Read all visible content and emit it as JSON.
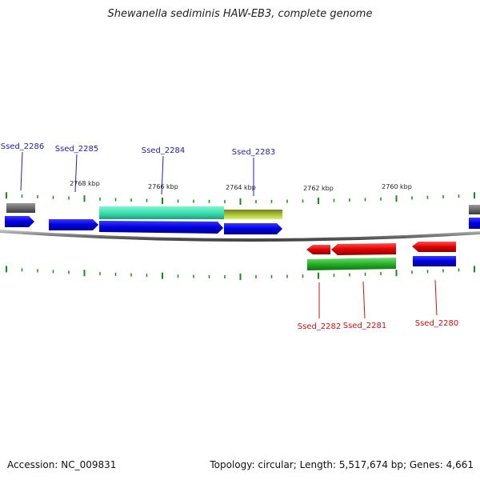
{
  "title": "Shewanella sediminis HAW-EB3, complete genome",
  "footer": {
    "accession": "Accession: NC_009831",
    "summary": "Topology: circular; Length: 5,517,674 bp; Genes: 4,661"
  },
  "colors": {
    "cds": "#0a0ae6",
    "rna": "#2ab84a",
    "gene_teal": "#3de0b0",
    "gene_olive": "#9bbf2a",
    "gene_gray": "#6e6e6e",
    "reverse": "#e01010",
    "label_forward": "#2222aa",
    "label_reverse": "#cc1111",
    "tick": "#1a8a1a"
  },
  "kbp_labels": [
    "2768 kbp",
    "2766 kbp",
    "2764 kbp",
    "2762 kbp",
    "2760 kbp"
  ],
  "genes_forward": [
    "Ssed_2286",
    "Ssed_2285",
    "Ssed_2284",
    "Ssed_2283"
  ],
  "genes_reverse": [
    "Ssed_2282",
    "Ssed_2281",
    "Ssed_2280"
  ]
}
